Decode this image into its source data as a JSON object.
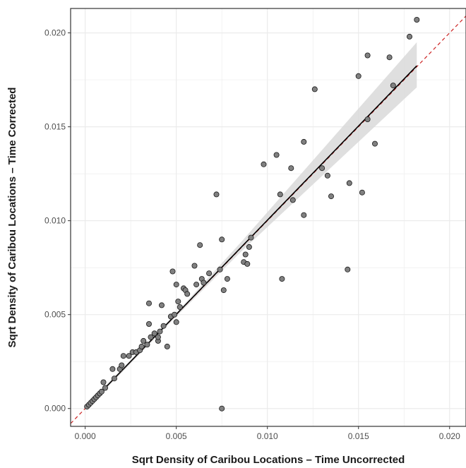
{
  "chart_data": {
    "type": "scatter",
    "title": "",
    "xlabel": "Sqrt Density of Caribou Locations – Time Uncorrected",
    "ylabel": "Sqrt Density of Caribou Locations – Time Corrected",
    "xlim": [
      -0.0008,
      0.0209
    ],
    "ylim": [
      -0.00095,
      0.0213
    ],
    "xticks": [
      0.0,
      0.005,
      0.01,
      0.015,
      0.02
    ],
    "yticks": [
      0.0,
      0.005,
      0.01,
      0.015,
      0.02
    ],
    "xtick_labels": [
      "0.000",
      "0.005",
      "0.010",
      "0.015",
      "0.020"
    ],
    "ytick_labels": [
      "0.000",
      "0.005",
      "0.010",
      "0.015",
      "0.020"
    ],
    "grid": true,
    "legend": "none",
    "colors": {
      "points": "#808080",
      "fit_line": "#000000",
      "confidence_band": "#d9d9d9",
      "reference_line": "#cc2222",
      "grid": "#ebebeb"
    },
    "fit_line": {
      "x": [
        0.0001,
        0.0182
      ],
      "y": [
        0.0001,
        0.01825
      ]
    },
    "confidence_band": {
      "x": [
        0.0001,
        0.005,
        0.0085,
        0.0182
      ],
      "lower": [
        0.0,
        0.0049,
        0.0083,
        0.0171
      ],
      "upper": [
        0.0002,
        0.0051,
        0.0088,
        0.0195
      ]
    },
    "reference_line": {
      "x": [
        -0.0008,
        0.0209
      ],
      "y": [
        -0.0008,
        0.0209
      ]
    },
    "points": {
      "x": [
        0.0001,
        0.0002,
        0.0003,
        0.0004,
        0.0005,
        0.0006,
        0.0007,
        0.0008,
        0.0009,
        0.001,
        0.0011,
        0.0015,
        0.0016,
        0.0019,
        0.002,
        0.0021,
        0.0024,
        0.0026,
        0.0028,
        0.003,
        0.0031,
        0.0032,
        0.0034,
        0.0035,
        0.0035,
        0.0036,
        0.0038,
        0.004,
        0.004,
        0.0041,
        0.0042,
        0.0043,
        0.0045,
        0.0047,
        0.0048,
        0.0049,
        0.005,
        0.005,
        0.0051,
        0.0052,
        0.0054,
        0.0055,
        0.0056,
        0.006,
        0.0061,
        0.0063,
        0.0064,
        0.0065,
        0.0068,
        0.0072,
        0.0074,
        0.0075,
        0.0075,
        0.0076,
        0.0078,
        0.0087,
        0.0088,
        0.0089,
        0.009,
        0.0091,
        0.0098,
        0.0105,
        0.0107,
        0.0108,
        0.012,
        0.012,
        0.0113,
        0.0114,
        0.0126,
        0.013,
        0.0133,
        0.0135,
        0.0144,
        0.0145,
        0.015,
        0.0152,
        0.0155,
        0.0155,
        0.0159,
        0.0167,
        0.0169,
        0.0178,
        0.0182
      ],
      "y": [
        0.0001,
        0.0002,
        0.0003,
        0.0004,
        0.0005,
        0.0006,
        0.0007,
        0.0008,
        0.0009,
        0.0014,
        0.0011,
        0.0021,
        0.0016,
        0.0021,
        0.0023,
        0.0028,
        0.0028,
        0.003,
        0.003,
        0.0031,
        0.0033,
        0.0036,
        0.0034,
        0.0056,
        0.0045,
        0.0038,
        0.004,
        0.0036,
        0.0038,
        0.0041,
        0.0055,
        0.0044,
        0.0033,
        0.0049,
        0.0073,
        0.005,
        0.0046,
        0.0066,
        0.0057,
        0.0054,
        0.0064,
        0.0063,
        0.0061,
        0.0076,
        0.0066,
        0.0087,
        0.0069,
        0.0067,
        0.0072,
        0.0114,
        0.0074,
        0.009,
        0.0,
        0.0063,
        0.0069,
        0.0078,
        0.0082,
        0.0077,
        0.0086,
        0.0091,
        0.013,
        0.0135,
        0.0114,
        0.0069,
        0.0142,
        0.0103,
        0.0128,
        0.0111,
        0.017,
        0.0128,
        0.0124,
        0.0113,
        0.0074,
        0.012,
        0.0177,
        0.0115,
        0.0154,
        0.0188,
        0.0141,
        0.0187,
        0.0172,
        0.0198,
        0.0207
      ]
    }
  }
}
